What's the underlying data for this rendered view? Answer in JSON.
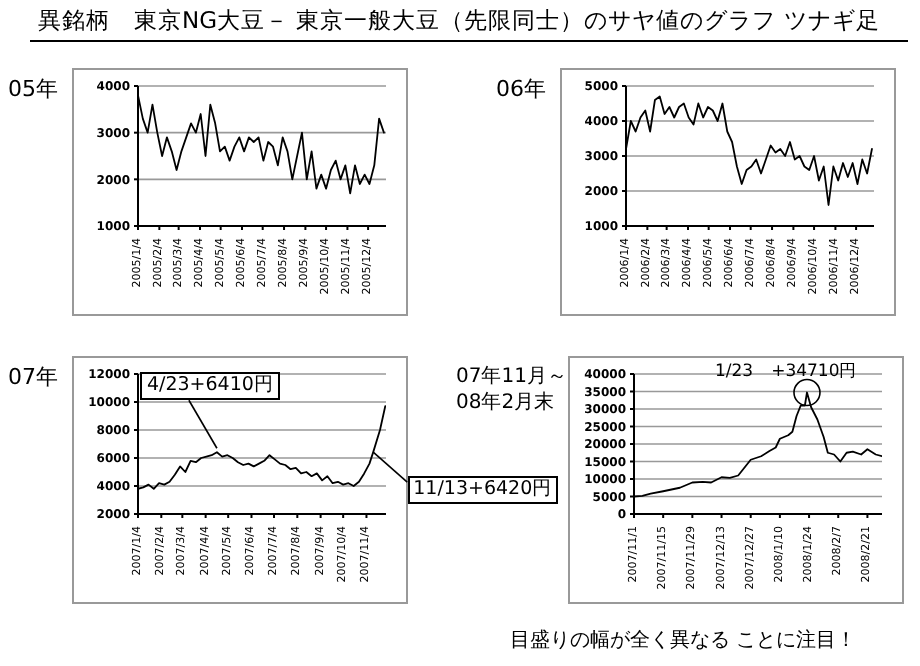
{
  "chart_data": [
    {
      "type": "line",
      "title": "05年",
      "annotations": [
        "異銘柄　東京NG大豆－ 東京一般大豆（先限同士）のサヤ値のグラフ ツナギ足"
      ],
      "color": "#000000",
      "grid": "y",
      "xlim": [
        "2005-01-04",
        "2005-12-30"
      ],
      "ylim": [
        1000,
        4000
      ],
      "yticks": [
        1000,
        2000,
        3000,
        4000
      ],
      "xticks": [
        {
          "value": "2005-01-04",
          "label": "2005/1/4"
        },
        {
          "value": "2005-02-04",
          "label": "2005/2/4"
        },
        {
          "value": "2005-03-04",
          "label": "2005/3/4"
        },
        {
          "value": "2005-04-04",
          "label": "2005/4/4"
        },
        {
          "value": "2005-05-04",
          "label": "2005/5/4"
        },
        {
          "value": "2005-06-04",
          "label": "2005/6/4"
        },
        {
          "value": "2005-07-04",
          "label": "2005/7/4"
        },
        {
          "value": "2005-08-04",
          "label": "2005/8/4"
        },
        {
          "value": "2005-09-04",
          "label": "2005/9/4"
        },
        {
          "value": "2005-10-04",
          "label": "2005/10/4"
        },
        {
          "value": "2005-11-04",
          "label": "2005/11/4"
        },
        {
          "value": "2005-12-04",
          "label": "2005/12/4"
        }
      ],
      "x": [
        "2005-01-04",
        "2005-01-11",
        "2005-01-18",
        "2005-01-25",
        "2005-02-01",
        "2005-02-08",
        "2005-02-15",
        "2005-02-22",
        "2005-03-01",
        "2005-03-08",
        "2005-03-15",
        "2005-03-22",
        "2005-03-29",
        "2005-04-05",
        "2005-04-12",
        "2005-04-19",
        "2005-04-26",
        "2005-05-03",
        "2005-05-10",
        "2005-05-17",
        "2005-05-24",
        "2005-05-31",
        "2005-06-07",
        "2005-06-14",
        "2005-06-21",
        "2005-06-28",
        "2005-07-05",
        "2005-07-12",
        "2005-07-19",
        "2005-07-26",
        "2005-08-02",
        "2005-08-09",
        "2005-08-16",
        "2005-08-23",
        "2005-08-30",
        "2005-09-06",
        "2005-09-13",
        "2005-09-20",
        "2005-09-27",
        "2005-10-04",
        "2005-10-11",
        "2005-10-18",
        "2005-10-25",
        "2005-11-01",
        "2005-11-08",
        "2005-11-15",
        "2005-11-22",
        "2005-11-29",
        "2005-12-06",
        "2005-12-13",
        "2005-12-20",
        "2005-12-27"
      ],
      "values": [
        3800,
        3300,
        3000,
        3600,
        3000,
        2500,
        2900,
        2600,
        2200,
        2600,
        2900,
        3200,
        3000,
        3400,
        2500,
        3600,
        3200,
        2600,
        2700,
        2400,
        2700,
        2900,
        2600,
        2900,
        2800,
        2900,
        2400,
        2800,
        2700,
        2300,
        2900,
        2600,
        2000,
        2500,
        3000,
        2000,
        2600,
        1800,
        2100,
        1800,
        2200,
        2400,
        2000,
        2300,
        1700,
        2300,
        1900,
        2100,
        1900,
        2300,
        3300,
        3000
      ]
    },
    {
      "type": "line",
      "title": "06年",
      "color": "#000000",
      "grid": "y",
      "xlim": [
        "2006-01-04",
        "2006-12-30"
      ],
      "ylim": [
        1000,
        5000
      ],
      "yticks": [
        1000,
        2000,
        3000,
        4000,
        5000
      ],
      "xticks": [
        {
          "value": "2006-01-04",
          "label": "2006/1/4"
        },
        {
          "value": "2006-02-04",
          "label": "2006/2/4"
        },
        {
          "value": "2006-03-04",
          "label": "2006/3/4"
        },
        {
          "value": "2006-04-04",
          "label": "2006/4/4"
        },
        {
          "value": "2006-05-04",
          "label": "2006/5/4"
        },
        {
          "value": "2006-06-04",
          "label": "2006/6/4"
        },
        {
          "value": "2006-07-04",
          "label": "2006/7/4"
        },
        {
          "value": "2006-08-04",
          "label": "2006/8/4"
        },
        {
          "value": "2006-09-04",
          "label": "2006/9/4"
        },
        {
          "value": "2006-10-04",
          "label": "2006/10/4"
        },
        {
          "value": "2006-11-04",
          "label": "2006/11/4"
        },
        {
          "value": "2006-12-04",
          "label": "2006/12/4"
        }
      ],
      "x": [
        "2006-01-04",
        "2006-01-11",
        "2006-01-18",
        "2006-01-25",
        "2006-02-01",
        "2006-02-08",
        "2006-02-15",
        "2006-02-22",
        "2006-03-01",
        "2006-03-08",
        "2006-03-15",
        "2006-03-22",
        "2006-03-29",
        "2006-04-05",
        "2006-04-12",
        "2006-04-19",
        "2006-04-26",
        "2006-05-03",
        "2006-05-10",
        "2006-05-17",
        "2006-05-24",
        "2006-05-31",
        "2006-06-07",
        "2006-06-14",
        "2006-06-21",
        "2006-06-28",
        "2006-07-05",
        "2006-07-12",
        "2006-07-19",
        "2006-07-26",
        "2006-08-02",
        "2006-08-09",
        "2006-08-16",
        "2006-08-23",
        "2006-08-30",
        "2006-09-06",
        "2006-09-13",
        "2006-09-20",
        "2006-09-27",
        "2006-10-04",
        "2006-10-11",
        "2006-10-18",
        "2006-10-25",
        "2006-11-01",
        "2006-11-08",
        "2006-11-15",
        "2006-11-22",
        "2006-11-29",
        "2006-12-06",
        "2006-12-13",
        "2006-12-20",
        "2006-12-27"
      ],
      "values": [
        3200,
        4000,
        3700,
        4100,
        4300,
        3700,
        4600,
        4700,
        4200,
        4400,
        4100,
        4400,
        4500,
        4100,
        3900,
        4500,
        4100,
        4400,
        4300,
        4000,
        4500,
        3700,
        3400,
        2700,
        2200,
        2600,
        2700,
        2900,
        2500,
        2900,
        3300,
        3100,
        3200,
        3000,
        3400,
        2900,
        3000,
        2700,
        2600,
        3000,
        2300,
        2700,
        1600,
        2700,
        2300,
        2800,
        2400,
        2800,
        2200,
        2900,
        2500,
        3200
      ]
    },
    {
      "type": "line",
      "title": "07年",
      "color": "#000000",
      "grid": "y",
      "xlim": [
        "2007-01-04",
        "2007-11-30"
      ],
      "ylim": [
        2000,
        12000
      ],
      "yticks": [
        2000,
        4000,
        6000,
        8000,
        10000,
        12000
      ],
      "annotations": [
        {
          "text": "4/23+6410円",
          "x": "2007-04-19",
          "y": 6410
        },
        {
          "text": "11/13+6420円",
          "x": "2007-11-13",
          "y": 6420
        }
      ],
      "xticks": [
        {
          "value": "2007-01-04",
          "label": "2007/1/4"
        },
        {
          "value": "2007-02-04",
          "label": "2007/2/4"
        },
        {
          "value": "2007-03-04",
          "label": "2007/3/4"
        },
        {
          "value": "2007-04-04",
          "label": "2007/4/4"
        },
        {
          "value": "2007-05-04",
          "label": "2007/5/4"
        },
        {
          "value": "2007-06-04",
          "label": "2007/6/4"
        },
        {
          "value": "2007-07-04",
          "label": "2007/7/4"
        },
        {
          "value": "2007-08-04",
          "label": "2007/8/4"
        },
        {
          "value": "2007-09-04",
          "label": "2007/9/4"
        },
        {
          "value": "2007-10-04",
          "label": "2007/10/4"
        },
        {
          "value": "2007-11-04",
          "label": "2007/11/4"
        }
      ],
      "x": [
        "2007-01-04",
        "2007-01-11",
        "2007-01-18",
        "2007-01-25",
        "2007-02-01",
        "2007-02-08",
        "2007-02-15",
        "2007-02-22",
        "2007-03-01",
        "2007-03-08",
        "2007-03-15",
        "2007-03-22",
        "2007-03-29",
        "2007-04-05",
        "2007-04-12",
        "2007-04-19",
        "2007-04-26",
        "2007-05-03",
        "2007-05-10",
        "2007-05-17",
        "2007-05-24",
        "2007-05-31",
        "2007-06-07",
        "2007-06-14",
        "2007-06-21",
        "2007-06-28",
        "2007-07-05",
        "2007-07-12",
        "2007-07-19",
        "2007-07-26",
        "2007-08-02",
        "2007-08-09",
        "2007-08-16",
        "2007-08-23",
        "2007-08-30",
        "2007-09-06",
        "2007-09-13",
        "2007-09-20",
        "2007-09-27",
        "2007-10-04",
        "2007-10-11",
        "2007-10-18",
        "2007-10-25",
        "2007-11-01",
        "2007-11-08",
        "2007-11-13",
        "2007-11-22",
        "2007-11-29"
      ],
      "values": [
        3800,
        3900,
        4100,
        3800,
        4200,
        4100,
        4300,
        4800,
        5400,
        5000,
        5800,
        5700,
        6000,
        6100,
        6200,
        6410,
        6100,
        6200,
        6000,
        5700,
        5500,
        5600,
        5400,
        5600,
        5800,
        6200,
        5900,
        5600,
        5500,
        5200,
        5300,
        4900,
        5000,
        4700,
        4900,
        4400,
        4700,
        4200,
        4300,
        4100,
        4200,
        4000,
        4300,
        4900,
        5600,
        6420,
        8000,
        9700
      ]
    },
    {
      "type": "line",
      "title": "07年11月～\n08年2月末",
      "color": "#000000",
      "grid": "y",
      "xlim": [
        "2007-11-01",
        "2008-02-28"
      ],
      "ylim": [
        0,
        40000
      ],
      "yticks": [
        0,
        5000,
        10000,
        15000,
        20000,
        25000,
        30000,
        35000,
        40000
      ],
      "annotations": [
        {
          "text": "1/23　+34710円",
          "x": "2008-01-23",
          "y": 34710
        },
        "目盛りの幅が全く異なる ことに注目！"
      ],
      "xticks": [
        {
          "value": "2007-11-01",
          "label": "2007/11/1"
        },
        {
          "value": "2007-11-15",
          "label": "2007/11/15"
        },
        {
          "value": "2007-11-29",
          "label": "2007/11/29"
        },
        {
          "value": "2007-12-13",
          "label": "2007/12/13"
        },
        {
          "value": "2007-12-27",
          "label": "2007/12/27"
        },
        {
          "value": "2008-01-10",
          "label": "2008/1/10"
        },
        {
          "value": "2008-01-24",
          "label": "2008/1/24"
        },
        {
          "value": "2008-02-07",
          "label": "2008/2/7"
        },
        {
          "value": "2008-02-21",
          "label": "2008/2/21"
        }
      ],
      "x": [
        "2007-11-01",
        "2007-11-05",
        "2007-11-09",
        "2007-11-15",
        "2007-11-19",
        "2007-11-23",
        "2007-11-29",
        "2007-12-04",
        "2007-12-08",
        "2007-12-13",
        "2007-12-17",
        "2007-12-21",
        "2007-12-27",
        "2008-01-01",
        "2008-01-05",
        "2008-01-08",
        "2008-01-10",
        "2008-01-14",
        "2008-01-16",
        "2008-01-18",
        "2008-01-20",
        "2008-01-22",
        "2008-01-23",
        "2008-01-25",
        "2008-01-28",
        "2008-01-31",
        "2008-02-02",
        "2008-02-05",
        "2008-02-08",
        "2008-02-11",
        "2008-02-14",
        "2008-02-18",
        "2008-02-21",
        "2008-02-25",
        "2008-02-28"
      ],
      "values": [
        5000,
        5200,
        5800,
        6500,
        7000,
        7500,
        9000,
        9200,
        9000,
        10500,
        10300,
        11000,
        15500,
        16500,
        18000,
        19000,
        21500,
        22500,
        23500,
        28000,
        31000,
        31000,
        34710,
        30500,
        27000,
        22000,
        17500,
        17000,
        15000,
        17500,
        17800,
        17000,
        18500,
        17000,
        16500
      ]
    }
  ]
}
